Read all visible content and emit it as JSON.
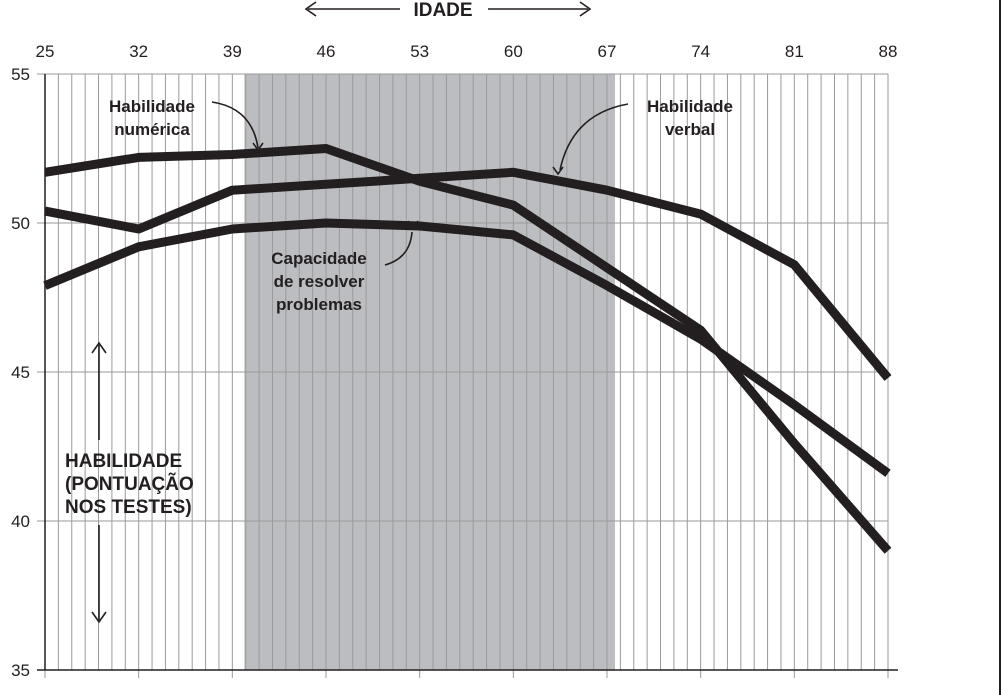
{
  "chart_data": {
    "type": "line",
    "title": "",
    "xlabel": "IDADE",
    "ylabel_lines": [
      "HABILIDADE",
      "(PONTUAÇÃO",
      "NOS TESTES)"
    ],
    "x_ticks": [
      25,
      32,
      39,
      46,
      53,
      60,
      67,
      74,
      81,
      88
    ],
    "y_ticks": [
      35,
      40,
      45,
      50,
      55
    ],
    "xlim": [
      25,
      88
    ],
    "ylim": [
      35,
      55
    ],
    "grid": true,
    "highlight_band": {
      "x_from": 39.9,
      "x_to": 67.6,
      "color": "#bcbdc0"
    },
    "series": [
      {
        "name": "Habilidade numérica",
        "x": [
          25,
          32,
          39,
          46,
          53,
          60,
          67,
          74,
          81,
          88
        ],
        "y": [
          51.7,
          52.2,
          52.3,
          52.5,
          51.4,
          50.6,
          48.5,
          46.4,
          42.6,
          39.0
        ]
      },
      {
        "name": "Habilidade verbal",
        "x": [
          25,
          32,
          39,
          46,
          53,
          60,
          67,
          74,
          81,
          88
        ],
        "y": [
          50.4,
          49.8,
          51.1,
          51.3,
          51.5,
          51.7,
          51.1,
          50.3,
          48.6,
          44.8
        ]
      },
      {
        "name": "Capacidade de resolver problemas",
        "x": [
          25,
          32,
          39,
          46,
          53,
          60,
          67,
          74,
          81,
          88
        ],
        "y": [
          47.9,
          49.2,
          49.8,
          50.0,
          49.9,
          49.6,
          47.9,
          46.1,
          43.9,
          41.6
        ]
      }
    ],
    "annotations": [
      {
        "lines": [
          "Habilidade",
          "numérica"
        ]
      },
      {
        "lines": [
          "Habilidade",
          "verbal"
        ]
      },
      {
        "lines": [
          "Capacidade",
          "de resolver",
          "problemas"
        ]
      }
    ]
  }
}
